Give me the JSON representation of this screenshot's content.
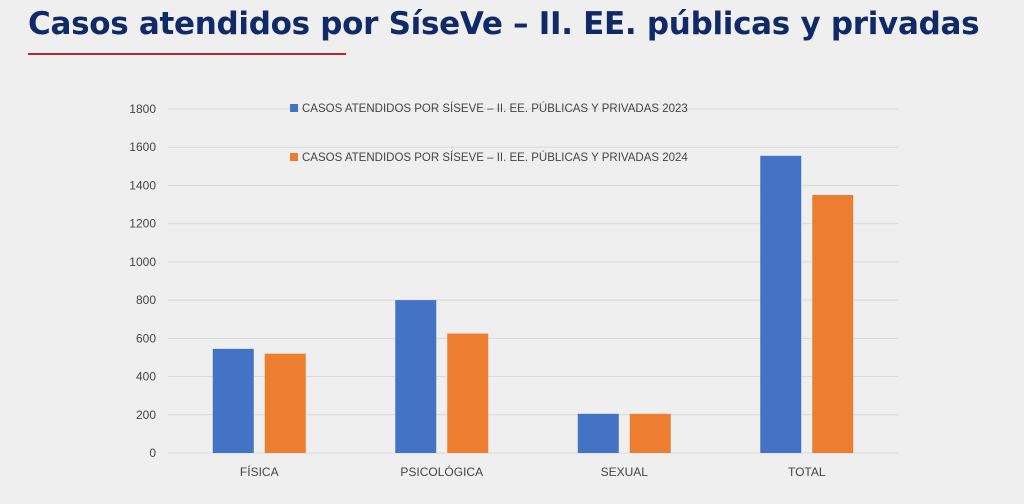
{
  "slide": {
    "title": "Casos atendidos por SíseVe – II. EE. públicas y privadas"
  },
  "colors": {
    "title": "#0f2a66",
    "underline": "#c0232b",
    "grid": "#d9d9d9"
  },
  "chart_data": {
    "type": "bar",
    "title": "",
    "xlabel": "",
    "ylabel": "",
    "categories": [
      "FÍSICA",
      "PSICOLÓGICA",
      "SEXUAL",
      "TOTAL"
    ],
    "series": [
      {
        "name": "CASOS ATENDIDOS POR SÍSEVE – II. EE. PÚBLICAS Y PRIVADAS 2023",
        "color": "#4472c4",
        "values": [
          545,
          800,
          205,
          1555
        ]
      },
      {
        "name": "CASOS ATENDIDOS POR SÍSEVE – II. EE. PÚBLICAS Y PRIVADAS 2024",
        "color": "#ed7d31",
        "values": [
          520,
          625,
          205,
          1350
        ]
      }
    ],
    "ylim": [
      0,
      1800
    ],
    "yticks": [
      0,
      200,
      400,
      600,
      800,
      1000,
      1200,
      1400,
      1600,
      1800
    ],
    "grid": true,
    "legend_position": "top-center"
  }
}
